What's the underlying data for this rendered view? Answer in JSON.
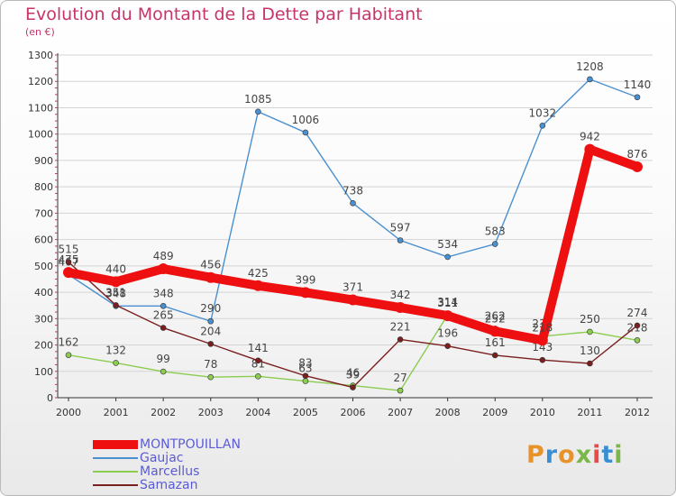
{
  "title": "Evolution du Montant de la Dette par Habitant",
  "subtitle": "(en €)",
  "logo": {
    "text": "Proxiti",
    "letters": [
      {
        "ch": "P",
        "color": "#e8922a"
      },
      {
        "ch": "r",
        "color": "#3a8fd4"
      },
      {
        "ch": "o",
        "color": "#e8922a"
      },
      {
        "ch": "x",
        "color": "#7ab648"
      },
      {
        "ch": "i",
        "color": "#e84a4a"
      },
      {
        "ch": "t",
        "color": "#3a8fd4"
      },
      {
        "ch": "i",
        "color": "#7ab648"
      }
    ]
  },
  "chart_data": {
    "type": "line",
    "x": [
      "2000",
      "2001",
      "2002",
      "2003",
      "2004",
      "2005",
      "2006",
      "2007",
      "2008",
      "2009",
      "2010",
      "2011",
      "2012"
    ],
    "ylim": [
      0,
      1300
    ],
    "yticks": [
      0,
      100,
      200,
      300,
      400,
      500,
      600,
      700,
      800,
      900,
      1000,
      1100,
      1200,
      1300
    ],
    "grid": true,
    "legend_position": "bottom-left",
    "series": [
      {
        "name": "Gaujac",
        "color": "#4a90d0",
        "values": [
          467,
          348,
          348,
          290,
          1085,
          1006,
          738,
          597,
          534,
          583,
          1032,
          1208,
          1140
        ]
      },
      {
        "name": "Marcellus",
        "color": "#8ccc50",
        "values": [
          162,
          132,
          99,
          78,
          81,
          63,
          46,
          27,
          314,
          262,
          233,
          250,
          218
        ]
      },
      {
        "name": "Samazan",
        "color": "#7a1f1f",
        "values": [
          515,
          351,
          265,
          204,
          141,
          83,
          39,
          221,
          196,
          161,
          143,
          130,
          274
        ]
      },
      {
        "name": "MONTPOUILLAN",
        "color": "#ee1010",
        "values": [
          475,
          440,
          489,
          456,
          425,
          399,
          371,
          342,
          311,
          252,
          218,
          942,
          876
        ]
      }
    ]
  }
}
